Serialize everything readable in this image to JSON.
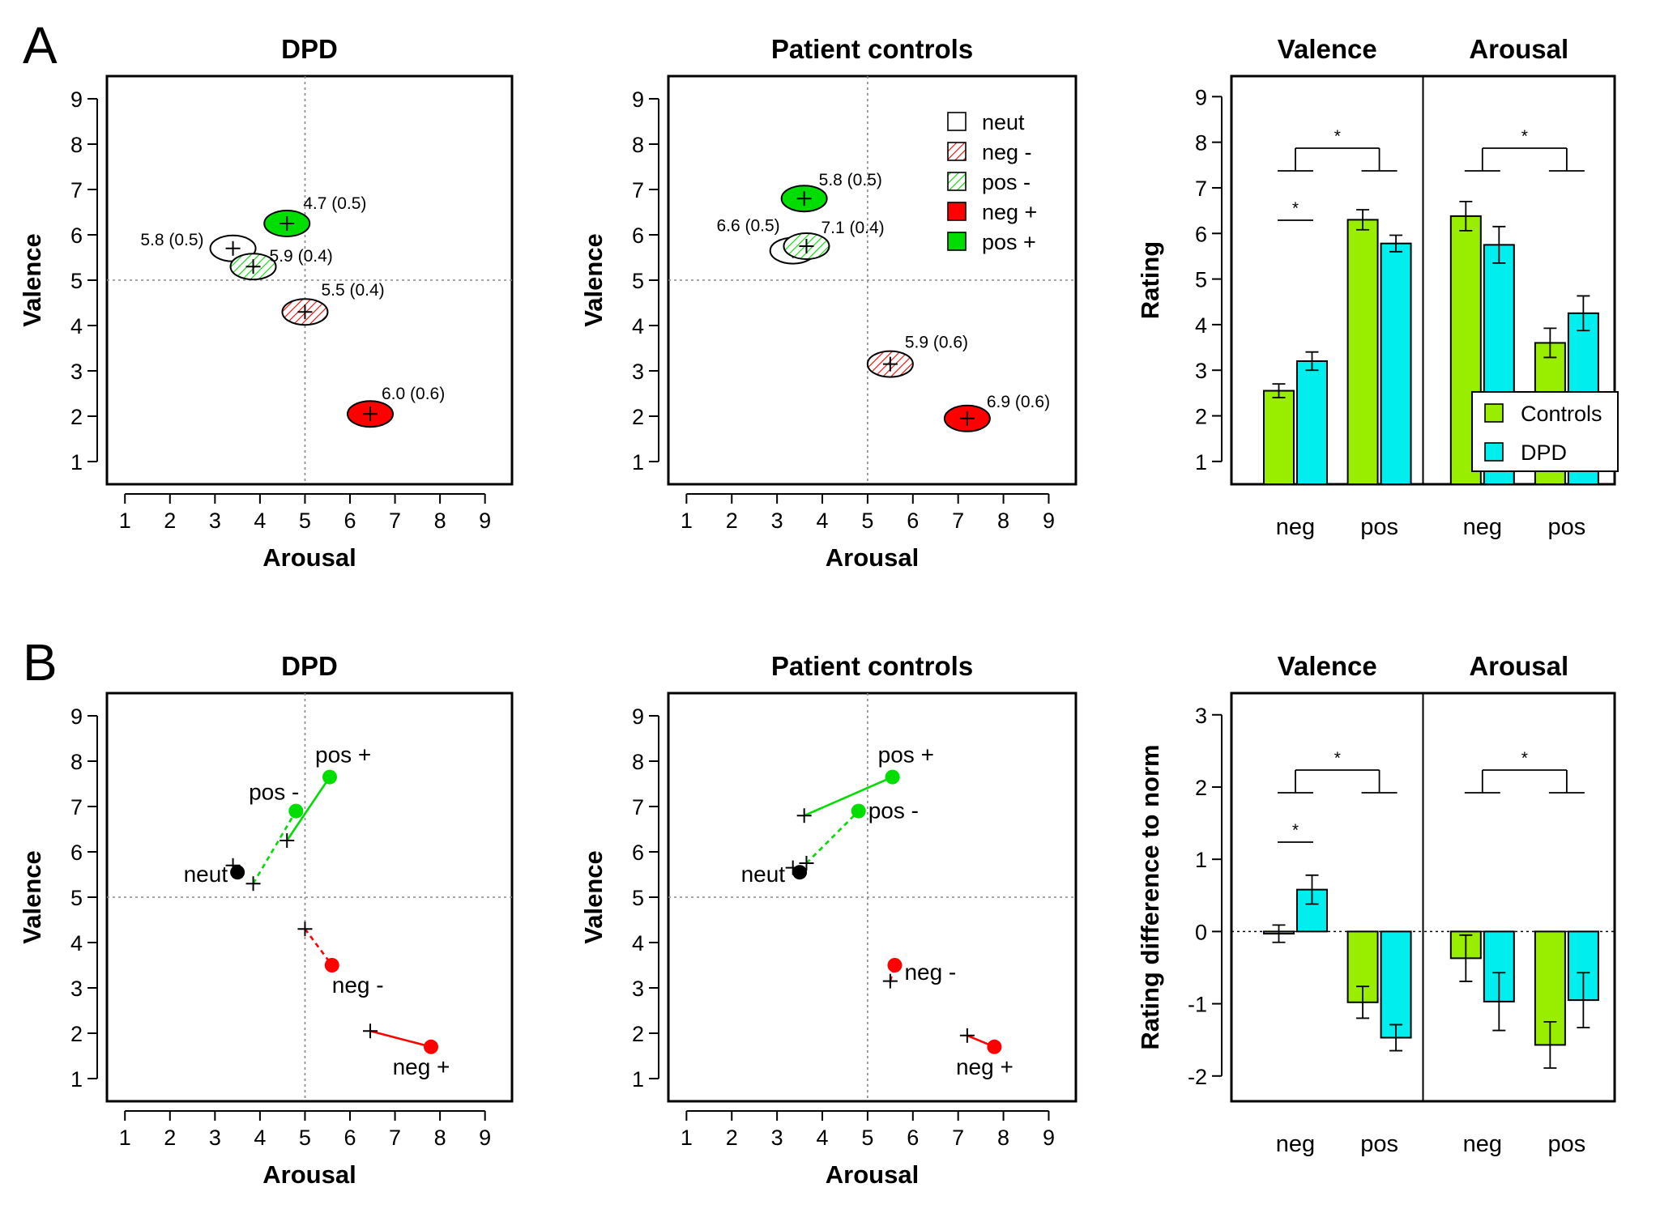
{
  "panel_labels": {
    "a": "A",
    "b": "B"
  },
  "colors": {
    "red": "#ff0000",
    "green": "#00dd00",
    "lime": "#99ee00",
    "cyan": "#00eeee"
  },
  "legend_a": [
    {
      "label": "neut",
      "style": "open"
    },
    {
      "label": "neg -",
      "style": "hatch-red"
    },
    {
      "label": "pos -",
      "style": "hatch-green"
    },
    {
      "label": "neg +",
      "style": "solid-red"
    },
    {
      "label": "pos +",
      "style": "solid-green"
    }
  ],
  "legend_bar": [
    {
      "label": "Controls",
      "color": "#99ee00"
    },
    {
      "label": "DPD",
      "color": "#00eeee"
    }
  ],
  "chart_data": [
    {
      "id": "A-DPD",
      "type": "scatter",
      "title": "DPD",
      "xlabel": "Arousal",
      "ylabel": "Valence",
      "xlim": [
        1,
        9
      ],
      "ylim": [
        1,
        9
      ],
      "grid": "dotted reference lines at 5",
      "points": [
        {
          "category": "neut",
          "style": "open",
          "x": 3.4,
          "y": 5.7,
          "label": "5.8 (0.5)"
        },
        {
          "category": "pos -",
          "style": "hatch-green",
          "x": 3.85,
          "y": 5.3,
          "label": "5.9 (0.4)"
        },
        {
          "category": "pos +",
          "style": "solid-green",
          "x": 4.6,
          "y": 6.25,
          "label": "4.7 (0.5)"
        },
        {
          "category": "neg -",
          "style": "hatch-red",
          "x": 5.0,
          "y": 4.3,
          "label": "5.5 (0.4)"
        },
        {
          "category": "neg +",
          "style": "solid-red",
          "x": 6.45,
          "y": 2.05,
          "label": "6.0 (0.6)"
        }
      ]
    },
    {
      "id": "A-PC",
      "type": "scatter",
      "title": "Patient controls",
      "xlabel": "Arousal",
      "ylabel": "Valence",
      "xlim": [
        1,
        9
      ],
      "ylim": [
        1,
        9
      ],
      "legend": "top-right",
      "points": [
        {
          "category": "neut",
          "style": "open",
          "x": 3.35,
          "y": 5.65,
          "label": "6.6 (0.5)"
        },
        {
          "category": "pos -",
          "style": "hatch-green",
          "x": 3.65,
          "y": 5.75,
          "label": "7.1 (0.4)"
        },
        {
          "category": "pos +",
          "style": "solid-green",
          "x": 3.6,
          "y": 6.8,
          "label": "5.8 (0.5)"
        },
        {
          "category": "neg -",
          "style": "hatch-red",
          "x": 5.5,
          "y": 3.15,
          "label": "5.9 (0.6)"
        },
        {
          "category": "neg +",
          "style": "solid-red",
          "x": 7.2,
          "y": 1.95,
          "label": "6.9 (0.6)"
        }
      ]
    },
    {
      "id": "A-bar",
      "type": "bar",
      "ylabel": "Rating",
      "ylim": [
        1,
        9
      ],
      "groups": [
        "Valence",
        "Arousal"
      ],
      "categories": [
        "neg",
        "pos",
        "neg",
        "pos"
      ],
      "series": [
        {
          "name": "Controls",
          "values": [
            2.55,
            6.3,
            6.38,
            3.6
          ],
          "err": [
            0.15,
            0.22,
            0.32,
            0.32
          ]
        },
        {
          "name": "DPD",
          "values": [
            3.2,
            5.78,
            5.75,
            4.25
          ],
          "err": [
            0.2,
            0.18,
            0.4,
            0.38
          ]
        }
      ],
      "significance": "*",
      "legend": "bottom-right"
    },
    {
      "id": "B-DPD",
      "type": "scatter",
      "title": "DPD",
      "xlabel": "Arousal",
      "ylabel": "Valence",
      "xlim": [
        1,
        9
      ],
      "ylim": [
        1,
        9
      ],
      "norm_points": [
        {
          "label": "neut",
          "x": 3.5,
          "y": 5.55,
          "color": "#000000"
        },
        {
          "label": "pos -",
          "x": 4.8,
          "y": 6.9,
          "color": "#00dd00"
        },
        {
          "label": "pos +",
          "x": 5.55,
          "y": 7.65,
          "color": "#00dd00"
        },
        {
          "label": "neg -",
          "x": 5.6,
          "y": 3.5,
          "color": "#ff0000"
        },
        {
          "label": "neg +",
          "x": 7.8,
          "y": 1.7,
          "color": "#ff0000"
        }
      ],
      "rating_points": [
        {
          "x": 3.4,
          "y": 5.7
        },
        {
          "x": 3.85,
          "y": 5.3
        },
        {
          "x": 4.6,
          "y": 6.25
        },
        {
          "x": 5.0,
          "y": 4.3
        },
        {
          "x": 6.45,
          "y": 2.05
        }
      ]
    },
    {
      "id": "B-PC",
      "type": "scatter",
      "title": "Patient controls",
      "xlabel": "Arousal",
      "ylabel": "Valence",
      "xlim": [
        1,
        9
      ],
      "ylim": [
        1,
        9
      ],
      "norm_points": [
        {
          "label": "neut",
          "x": 3.5,
          "y": 5.55,
          "color": "#000000"
        },
        {
          "label": "pos -",
          "x": 4.8,
          "y": 6.9,
          "color": "#00dd00"
        },
        {
          "label": "pos +",
          "x": 5.55,
          "y": 7.65,
          "color": "#00dd00"
        },
        {
          "label": "neg -",
          "x": 5.6,
          "y": 3.5,
          "color": "#ff0000"
        },
        {
          "label": "neg +",
          "x": 7.8,
          "y": 1.7,
          "color": "#ff0000"
        }
      ],
      "rating_points": [
        {
          "x": 3.35,
          "y": 5.65
        },
        {
          "x": 3.65,
          "y": 5.75
        },
        {
          "x": 3.6,
          "y": 6.8
        },
        {
          "x": 5.5,
          "y": 3.15
        },
        {
          "x": 7.2,
          "y": 1.95
        }
      ]
    },
    {
      "id": "B-bar",
      "type": "bar",
      "ylabel": "Rating difference to norm",
      "ylim": [
        -2,
        3
      ],
      "groups": [
        "Valence",
        "Arousal"
      ],
      "categories": [
        "neg",
        "pos",
        "neg",
        "pos"
      ],
      "series": [
        {
          "name": "Controls",
          "values": [
            -0.03,
            -0.98,
            -0.37,
            -1.57
          ],
          "err": [
            0.12,
            0.22,
            0.32,
            0.32
          ]
        },
        {
          "name": "DPD",
          "values": [
            0.58,
            -1.47,
            -0.97,
            -0.95
          ],
          "err": [
            0.2,
            0.18,
            0.4,
            0.38
          ]
        }
      ],
      "significance": "*"
    }
  ]
}
